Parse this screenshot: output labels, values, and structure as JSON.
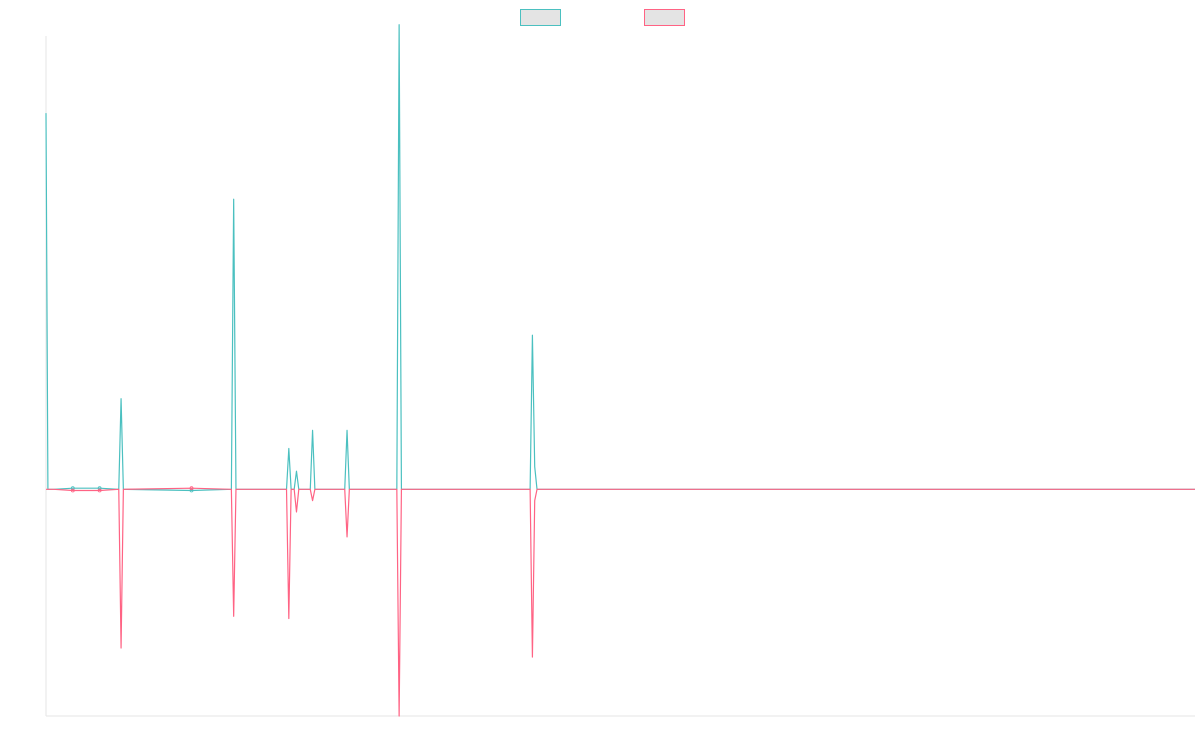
{
  "colors": {
    "background": "#ffffff",
    "axis": "#e6e6e6",
    "legend_fill": "#e4e4e4"
  },
  "chart_data": {
    "type": "line",
    "title": "",
    "xlabel": "",
    "ylabel": "",
    "grid": false,
    "legend": {
      "position": "top-center"
    },
    "xlim": [
      0,
      150
    ],
    "ylim": [
      -100,
      200
    ],
    "x": [
      0,
      0.25,
      1,
      3.5,
      7,
      9.5,
      9.8,
      10.1,
      19,
      24.2,
      24.5,
      24.8,
      31.4,
      31.7,
      32,
      32.4,
      32.7,
      33,
      33.3,
      34.5,
      34.8,
      35.1,
      36.4,
      39,
      39.3,
      39.6,
      45.8,
      46.1,
      46.4,
      60.5,
      63.2,
      63.5,
      63.8,
      64.1,
      150
    ],
    "series": [
      {
        "name": "",
        "color": "#4bc0c0",
        "values": [
          166,
          0,
          0,
          0.5,
          0.5,
          0,
          40,
          0,
          -0.5,
          0,
          128,
          0,
          0,
          18,
          0,
          0,
          8,
          0,
          0,
          0,
          26,
          0,
          0,
          0,
          26,
          0,
          0,
          205,
          0,
          0,
          0,
          68,
          10,
          0,
          0
        ]
      },
      {
        "name": "",
        "color": "#ff6384",
        "values": [
          0,
          0,
          0,
          -0.5,
          -0.5,
          0,
          -70,
          0,
          0.5,
          0,
          -56,
          0,
          0,
          -57,
          0,
          0,
          -10,
          0,
          0,
          0,
          -5,
          0,
          0,
          0,
          -21,
          0,
          0,
          -100,
          0,
          0,
          0,
          -74,
          -5,
          0,
          0
        ]
      }
    ]
  }
}
